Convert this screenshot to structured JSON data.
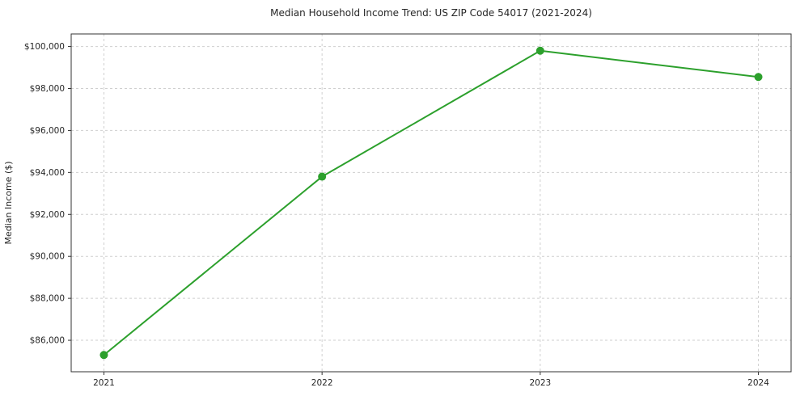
{
  "chart": {
    "title": "Median Household Income Trend: US ZIP Code 54017 (2021-2024)",
    "ylabel": "Median Income ($)"
  },
  "chart_data": {
    "type": "line",
    "title": "Median Household Income Trend: US ZIP Code 54017 (2021-2024)",
    "xlabel": "",
    "ylabel": "Median Income ($)",
    "x": [
      2021,
      2022,
      2023,
      2024
    ],
    "categories": [
      "2021",
      "2022",
      "2023",
      "2024"
    ],
    "series": [
      {
        "name": "Median Household Income",
        "values": [
          85300,
          93800,
          99800,
          98550
        ],
        "color": "#2ca02c"
      }
    ],
    "xlim": [
      2020.85,
      2024.15
    ],
    "ylim": [
      84500,
      100600
    ],
    "yticks": [
      86000,
      88000,
      90000,
      92000,
      94000,
      96000,
      98000,
      100000
    ],
    "ytick_labels": [
      "$86,000",
      "$88,000",
      "$90,000",
      "$92,000",
      "$94,000",
      "$96,000",
      "$98,000",
      "$100,000"
    ],
    "grid": true,
    "grid_color": "#cfcfcf",
    "grid_dash": "3,3",
    "spine_color": "#333333",
    "background": "#ffffff",
    "legend_position": "none",
    "marker": "circle",
    "marker_radius": 5,
    "line_width": 2
  }
}
